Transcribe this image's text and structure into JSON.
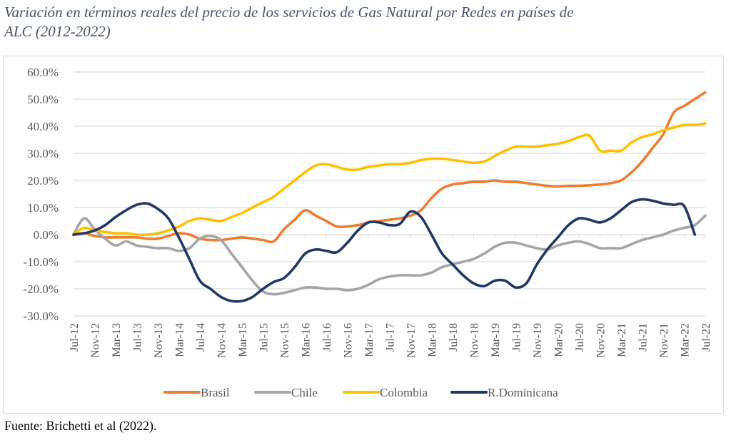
{
  "title": "Variación en términos reales del precio de los servicios de Gas Natural por Redes en países de ALC (2012-2022)",
  "title_lines": [
    "Variación en términos reales del precio de los servicios de Gas Natural por Redes en países de",
    "ALC (2012-2022)"
  ],
  "source": "Fuente: Brichetti et al (2022).",
  "chart_data": {
    "type": "line",
    "title": "Variación en términos reales del precio de los servicios de Gas Natural por Redes en países de ALC (2012-2022)",
    "xlabel": "",
    "ylabel": "",
    "ylim": [
      -30,
      60
    ],
    "yticks": [
      60,
      50,
      40,
      30,
      20,
      10,
      0,
      -10,
      -20,
      -30
    ],
    "ytick_labels": [
      "60.0%",
      "50.0%",
      "40.0%",
      "30.0%",
      "20.0%",
      "10.0%",
      "0.0%",
      "-10.0%",
      "-20.0%",
      "-30.0%"
    ],
    "grid": true,
    "legend_position": "bottom",
    "xtick_labels": [
      "Jul-12",
      "Nov-12",
      "Mar-13",
      "Jul-13",
      "Nov-13",
      "Mar-14",
      "Jul-14",
      "Nov-14",
      "Mar-15",
      "Jul-15",
      "Nov-15",
      "Mar-16",
      "Jul-16",
      "Nov-16",
      "Mar-17",
      "Jul-17",
      "Nov-17",
      "Mar-18",
      "Jul-18",
      "Nov-18",
      "Mar-19",
      "Jul-19",
      "Nov-19",
      "Mar-20",
      "Jul-20",
      "Nov-20",
      "Mar-21",
      "Jul-21",
      "Nov-21",
      "Mar-22",
      "Jul-22"
    ],
    "x": [
      "Jul-12",
      "Sep-12",
      "Nov-12",
      "Jan-13",
      "Mar-13",
      "May-13",
      "Jul-13",
      "Sep-13",
      "Nov-13",
      "Jan-14",
      "Mar-14",
      "May-14",
      "Jul-14",
      "Sep-14",
      "Nov-14",
      "Jan-15",
      "Mar-15",
      "May-15",
      "Jul-15",
      "Sep-15",
      "Nov-15",
      "Jan-16",
      "Mar-16",
      "May-16",
      "Jul-16",
      "Sep-16",
      "Nov-16",
      "Jan-17",
      "Mar-17",
      "May-17",
      "Jul-17",
      "Sep-17",
      "Nov-17",
      "Jan-18",
      "Mar-18",
      "May-18",
      "Jul-18",
      "Sep-18",
      "Nov-18",
      "Jan-19",
      "Mar-19",
      "May-19",
      "Jul-19",
      "Sep-19",
      "Nov-19",
      "Jan-20",
      "Mar-20",
      "May-20",
      "Jul-20",
      "Sep-20",
      "Nov-20",
      "Jan-21",
      "Mar-21",
      "May-21",
      "Jul-21",
      "Sep-21",
      "Nov-21",
      "Jan-22",
      "Mar-22",
      "May-22",
      "Jul-22"
    ],
    "series": [
      {
        "name": "Brasil",
        "color": "#ed7d31",
        "values": [
          0,
          0.5,
          -0.5,
          -1,
          -1,
          -1,
          -1,
          -1.5,
          -1.5,
          -0.5,
          0.5,
          0,
          -1.5,
          -2,
          -2,
          -1.5,
          -1,
          -1.5,
          -2,
          -2.5,
          2,
          5.5,
          9,
          7,
          5,
          3,
          3,
          3.5,
          4.5,
          5,
          5.5,
          6,
          7,
          9,
          13.5,
          17,
          18.5,
          19,
          19.5,
          19.5,
          20,
          19.5,
          19.5,
          19,
          18.5,
          18,
          17.8,
          18,
          18,
          18.2,
          18.5,
          19,
          20,
          23,
          27,
          32,
          37,
          45,
          47.5,
          50,
          52.5
        ]
      },
      {
        "name": "Chile",
        "color": "#a5a5a5",
        "values": [
          0,
          6,
          2,
          -1.5,
          -4,
          -2.5,
          -4,
          -4.5,
          -5,
          -5,
          -6,
          -5,
          -1.5,
          -0.5,
          -2,
          -7,
          -12,
          -17,
          -21,
          -22,
          -21.5,
          -20.5,
          -19.5,
          -19.5,
          -20,
          -20,
          -20.5,
          -20,
          -18.5,
          -16.5,
          -15.5,
          -15,
          -15,
          -15,
          -14,
          -12,
          -11,
          -10,
          -9,
          -7,
          -4.5,
          -3,
          -3,
          -4,
          -5,
          -5.5,
          -4,
          -3,
          -2.5,
          -3.5,
          -5,
          -5,
          -5,
          -3.5,
          -2,
          -1,
          0,
          1.5,
          2.5,
          3.5,
          7
        ]
      },
      {
        "name": "Colombia",
        "color": "#ffc000",
        "values": [
          0,
          2.5,
          1.5,
          1,
          0.5,
          0.5,
          0,
          0,
          0.5,
          1.5,
          3,
          5,
          6,
          5.5,
          5,
          6.5,
          8,
          10,
          12,
          14,
          17,
          20,
          23,
          25.5,
          26,
          25,
          24,
          24,
          25,
          25.5,
          26,
          26,
          26.5,
          27.5,
          28,
          28,
          27.5,
          27,
          26.5,
          27,
          29,
          31,
          32.5,
          32.5,
          32.5,
          33,
          33.5,
          34.5,
          36,
          36.5,
          31,
          31,
          31,
          34,
          36,
          37,
          38.5,
          39.5,
          40.5,
          40.5,
          41
        ]
      },
      {
        "name": "R.Dominicana",
        "color": "#203864",
        "values": [
          0,
          0.5,
          1.5,
          3.5,
          6.5,
          9,
          11,
          11.5,
          9.5,
          6,
          -1,
          -9,
          -17,
          -20,
          -23,
          -24.5,
          -24.5,
          -23,
          -20,
          -17.5,
          -16,
          -12,
          -7,
          -5.5,
          -6,
          -6.5,
          -3,
          1.5,
          4.5,
          4.5,
          3.5,
          4,
          8.5,
          6.5,
          0,
          -7,
          -11,
          -15,
          -18,
          -19,
          -17,
          -17,
          -19.5,
          -18,
          -11,
          -5.5,
          -1,
          3.5,
          6,
          5.5,
          4.5,
          6,
          9,
          12,
          13,
          12.5,
          11.5,
          11,
          10.5,
          0,
          null
        ]
      }
    ]
  }
}
